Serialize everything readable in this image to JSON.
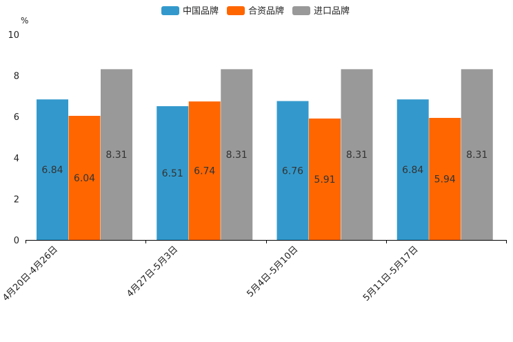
{
  "chart_data": {
    "type": "bar",
    "title": "",
    "xlabel": "",
    "ylabel": "%",
    "ylim": [
      0,
      10
    ],
    "yticks": [
      0,
      2,
      4,
      6,
      8,
      10
    ],
    "grid": false,
    "legend_position": "top-center",
    "categories": [
      "4月20日-4月26日",
      "4月27日-5月3日",
      "5月4日-5月10日",
      "5月11日-5月17日"
    ],
    "series": [
      {
        "name": "中国品牌",
        "color": "#3399cc",
        "values": [
          6.84,
          6.51,
          6.76,
          6.84
        ],
        "labels": [
          "6.84",
          "6.51",
          "6.76",
          "6.84"
        ]
      },
      {
        "name": "合资品牌",
        "color": "#ff6600",
        "values": [
          6.04,
          6.74,
          5.91,
          5.94
        ],
        "labels": [
          "6.04",
          "6.74",
          "5.91",
          "5.94"
        ]
      },
      {
        "name": "进口品牌",
        "color": "#999999",
        "values": [
          8.31,
          8.31,
          8.31,
          8.31
        ],
        "labels": [
          "8.31",
          "8.31",
          "8.31",
          "8.31"
        ]
      }
    ]
  }
}
